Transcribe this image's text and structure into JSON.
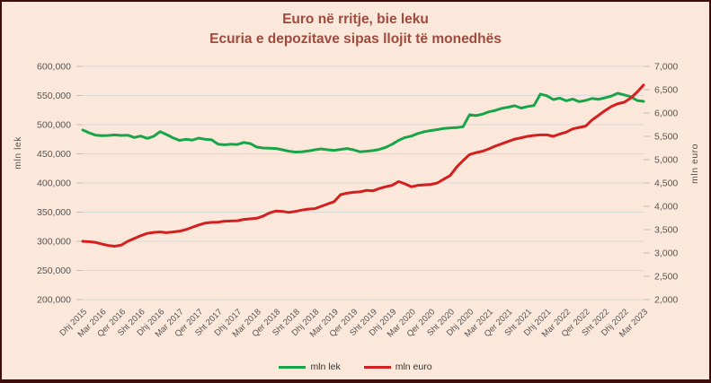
{
  "header": {
    "title": "Euro në rritje, bie leku",
    "subtitle": "Ecuria e depozitave sipas llojit të monedhës"
  },
  "colors": {
    "background": "#fce8da",
    "frame_border": "#400d0c",
    "title_text": "#9e4a3d",
    "gridline": "#d9d9d9",
    "tick_mark": "#c9bcae",
    "tick_text": "#545454",
    "legend_text": "#333333",
    "series_lek_green": "#18a549",
    "series_euro_red": "#d41f1f"
  },
  "chart_data": {
    "type": "line",
    "title": "Euro në rritje, bie leku",
    "subtitle": "Ecuria e depozitave sipas llojit të monedhës",
    "grid": "horizontal-only",
    "legend_position": "bottom-center",
    "x_tick_labels": [
      "Dhj 2015",
      "Mar 2016",
      "Qer 2016",
      "Sht 2016",
      "Dhj 2016",
      "Mar 2017",
      "Qer 2017",
      "Sht 2017",
      "Dhj 2017",
      "Mar 2018",
      "Qer 2018",
      "Sht 2018",
      "Dhj 2018",
      "Mar 2019",
      "Qer 2019",
      "Sht 2019",
      "Dhj 2019",
      "Mar 2020",
      "Qer 2020",
      "Sht 2020",
      "Dhj 2020",
      "Mar 2021",
      "Qer 2021",
      "Sht 2021",
      "Dhj 2021",
      "Mar 2022",
      "Qer 2022",
      "Sht 2022",
      "Dhj 2022",
      "Mar 2023"
    ],
    "x_tick_every_n_points": 3,
    "x_note": "monthly data Dec 2015 - Mar 2023, 88 points, labels every 3rd month",
    "left_axis": {
      "label": "mln lek",
      "min": 200000,
      "max": 600000,
      "step": 50000,
      "tick_labels": [
        "600,000",
        "550,000",
        "500,000",
        "450,000",
        "400,000",
        "350,000",
        "300,000",
        "250,000",
        "200,000"
      ]
    },
    "right_axis": {
      "label": "mln euro",
      "min": 2000,
      "max": 7000,
      "step": 500,
      "tick_labels": [
        "7,000",
        "6,500",
        "6,000",
        "5,500",
        "5,000",
        "4,500",
        "4,000",
        "3,500",
        "3,000",
        "2,500",
        "2,000"
      ]
    },
    "series": [
      {
        "name": "mln lek",
        "axis": "left",
        "color": "#18a549",
        "values": [
          491000,
          486000,
          482000,
          481000,
          481500,
          482500,
          481500,
          482000,
          478000,
          480500,
          476500,
          480000,
          488000,
          483000,
          477500,
          473000,
          475000,
          473500,
          477000,
          475000,
          474000,
          466500,
          465500,
          466500,
          466000,
          469500,
          467500,
          461500,
          460000,
          459500,
          459000,
          457000,
          454500,
          453000,
          453500,
          455000,
          457000,
          458500,
          457000,
          456000,
          457500,
          459000,
          457000,
          453500,
          454500,
          455500,
          457500,
          461000,
          466500,
          473000,
          478000,
          480500,
          485000,
          488000,
          490000,
          491500,
          493500,
          494500,
          495000,
          496500,
          517000,
          515500,
          518000,
          522000,
          524500,
          528000,
          530000,
          532500,
          528500,
          531000,
          533000,
          552500,
          549500,
          543000,
          545500,
          541000,
          544000,
          539500,
          541500,
          545000,
          543500,
          546000,
          549000,
          554000,
          551000,
          548000,
          541500,
          540000
        ]
      },
      {
        "name": "mln euro",
        "axis": "right",
        "color": "#d41f1f",
        "values": [
          3250,
          3240,
          3225,
          3190,
          3160,
          3145,
          3170,
          3250,
          3310,
          3370,
          3420,
          3440,
          3450,
          3435,
          3450,
          3465,
          3500,
          3550,
          3600,
          3640,
          3655,
          3660,
          3680,
          3685,
          3690,
          3720,
          3730,
          3745,
          3790,
          3860,
          3900,
          3890,
          3870,
          3890,
          3920,
          3940,
          3950,
          4000,
          4050,
          4100,
          4250,
          4280,
          4300,
          4310,
          4340,
          4330,
          4380,
          4420,
          4450,
          4530,
          4480,
          4420,
          4450,
          4460,
          4470,
          4500,
          4580,
          4660,
          4840,
          4980,
          5110,
          5150,
          5180,
          5230,
          5290,
          5340,
          5390,
          5440,
          5470,
          5500,
          5520,
          5530,
          5530,
          5500,
          5550,
          5590,
          5660,
          5690,
          5720,
          5850,
          5950,
          6050,
          6140,
          6200,
          6230,
          6320,
          6450,
          6600
        ]
      }
    ]
  }
}
